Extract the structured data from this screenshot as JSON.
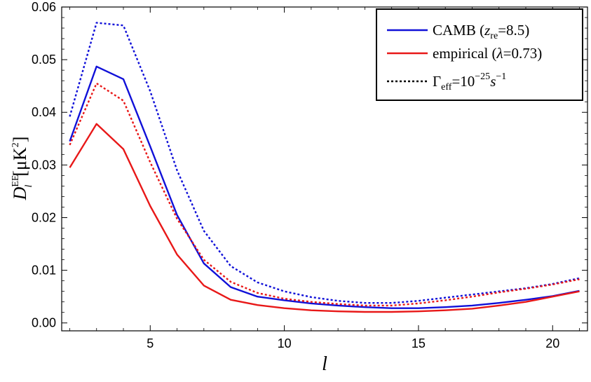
{
  "chart_data": {
    "type": "line",
    "title": "",
    "xlabel": "l",
    "ylabel": {
      "main": "D",
      "sup": "EE",
      "sub": "l",
      "unit": "[μK",
      "unit_sup": "2",
      "unit_close": "]"
    },
    "xlim": [
      1.7,
      21.3
    ],
    "ylim": [
      -0.0015,
      0.06
    ],
    "x_ticks": [
      5,
      10,
      15,
      20
    ],
    "y_ticks": [
      0.0,
      0.01,
      0.02,
      0.03,
      0.04,
      0.05,
      0.06
    ],
    "y_tick_labels": [
      "0.00",
      "0.01",
      "0.02",
      "0.03",
      "0.04",
      "0.05",
      "0.06"
    ],
    "grid": false,
    "legend_position": "top-right",
    "legend": [
      {
        "parts": [
          "CAMB (",
          "z",
          "re",
          "=8.5)"
        ],
        "color": "#1010d8",
        "style": "solid"
      },
      {
        "parts": [
          "empirical (",
          "λ",
          "=0.73)"
        ],
        "color": "#e81818",
        "style": "solid"
      },
      {
        "parts": [
          "Γ",
          "eff",
          "=10",
          "−25",
          "s",
          "−1"
        ],
        "color": "#000000",
        "style": "dotted"
      }
    ],
    "x": [
      2,
      3,
      4,
      5,
      6,
      7,
      8,
      9,
      10,
      11,
      12,
      13,
      14,
      15,
      16,
      17,
      18,
      19,
      20,
      21
    ],
    "series": [
      {
        "color": "#1010d8",
        "style": "solid",
        "values": [
          0.0345,
          0.0487,
          0.0463,
          0.0335,
          0.0205,
          0.0113,
          0.0068,
          0.005,
          0.0043,
          0.0037,
          0.0033,
          0.003,
          0.0028,
          0.0028,
          0.003,
          0.0033,
          0.0038,
          0.0044,
          0.0051,
          0.0061
        ]
      },
      {
        "color": "#e81818",
        "style": "solid",
        "values": [
          0.0295,
          0.0378,
          0.033,
          0.0222,
          0.013,
          0.0071,
          0.0044,
          0.0034,
          0.0028,
          0.0024,
          0.0022,
          0.0021,
          0.0021,
          0.0022,
          0.0024,
          0.0027,
          0.0033,
          0.004,
          0.005,
          0.006
        ]
      },
      {
        "color": "#1010d8",
        "style": "dotted",
        "values": [
          0.0392,
          0.057,
          0.0565,
          0.044,
          0.029,
          0.0175,
          0.0108,
          0.0077,
          0.006,
          0.0049,
          0.0042,
          0.0038,
          0.0038,
          0.0042,
          0.0048,
          0.0054,
          0.006,
          0.0066,
          0.0074,
          0.0085
        ]
      },
      {
        "color": "#e81818",
        "style": "dotted",
        "values": [
          0.0338,
          0.0455,
          0.0422,
          0.0305,
          0.0198,
          0.012,
          0.0078,
          0.0057,
          0.0046,
          0.004,
          0.0036,
          0.0033,
          0.0033,
          0.0037,
          0.0043,
          0.005,
          0.0058,
          0.0065,
          0.0073,
          0.0083
        ]
      }
    ]
  }
}
